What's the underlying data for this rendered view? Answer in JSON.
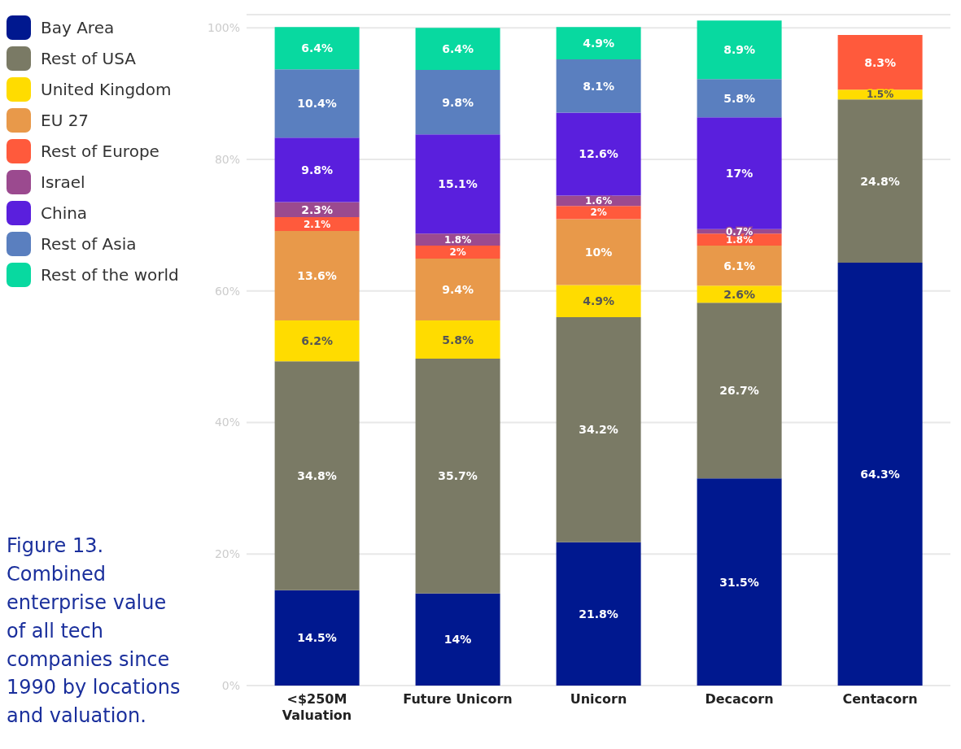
{
  "chart_data": {
    "type": "bar",
    "stacked": true,
    "title": "Figure 13. Combined enterprise value of all tech companies since 1990 by locations and valuation.",
    "categories": [
      "<$250M Valuation",
      "Future Unicorn",
      "Unicorn",
      "Decacorn",
      "Centacorn"
    ],
    "ylim": [
      0,
      102
    ],
    "yticks": [
      {
        "value": 0,
        "label": "0%"
      },
      {
        "value": 20,
        "label": "20%"
      },
      {
        "value": 40,
        "label": "40%"
      },
      {
        "value": 60,
        "label": "60%"
      },
      {
        "value": 80,
        "label": "80%"
      },
      {
        "value": 100,
        "label": "100%"
      }
    ],
    "grid": "y",
    "legend": "left",
    "series": [
      {
        "name": "Bay Area",
        "color": "#00188f",
        "values": [
          14.5,
          14,
          21.8,
          31.5,
          64.3
        ],
        "value_labels": [
          "14.5%",
          "14%",
          "21.8%",
          "31.5%",
          "64.3%"
        ]
      },
      {
        "name": "Rest of USA",
        "color": "#7a7a65",
        "values": [
          34.8,
          35.7,
          34.2,
          26.7,
          24.8
        ],
        "value_labels": [
          "34.8%",
          "35.7%",
          "34.2%",
          "26.7%",
          "24.8%"
        ]
      },
      {
        "name": "United Kingdom",
        "color": "#ffdc00",
        "values": [
          6.2,
          5.8,
          4.9,
          2.6,
          1.5
        ],
        "value_labels": [
          "6.2%",
          "5.8%",
          "4.9%",
          "2.6%",
          "1.5%"
        ]
      },
      {
        "name": "EU 27",
        "color": "#e8994a",
        "values": [
          13.6,
          9.4,
          10,
          6.1,
          0
        ],
        "value_labels": [
          "13.6%",
          "9.4%",
          "10%",
          "6.1%",
          null
        ]
      },
      {
        "name": "Rest of Europe",
        "color": "#ff5a3c",
        "values": [
          2.1,
          2,
          2,
          1.8,
          8.3
        ],
        "value_labels": [
          "2.1%",
          "2%",
          "2%",
          "1.8%",
          "8.3%"
        ]
      },
      {
        "name": "Israel",
        "color": "#9b4a8f",
        "values": [
          2.3,
          1.8,
          1.6,
          0.7,
          0
        ],
        "value_labels": [
          "2.3%",
          "1.8%",
          "1.6%",
          "0.7%",
          null
        ]
      },
      {
        "name": "China",
        "color": "#5a1fdd",
        "values": [
          9.8,
          15.1,
          12.6,
          17,
          0
        ],
        "value_labels": [
          "9.8%",
          "15.1%",
          "12.6%",
          "17%",
          null
        ]
      },
      {
        "name": "Rest of Asia",
        "color": "#5a7fbf",
        "values": [
          10.4,
          9.8,
          8.1,
          5.8,
          0
        ],
        "value_labels": [
          "10.4%",
          "9.8%",
          "8.1%",
          "5.8%",
          null
        ]
      },
      {
        "name": "Rest of the world",
        "color": "#08d9a0",
        "values": [
          6.4,
          6.4,
          4.9,
          8.9,
          0
        ],
        "value_labels": [
          "6.4%",
          "6.4%",
          "4.9%",
          "8.9%",
          null
        ]
      }
    ]
  }
}
